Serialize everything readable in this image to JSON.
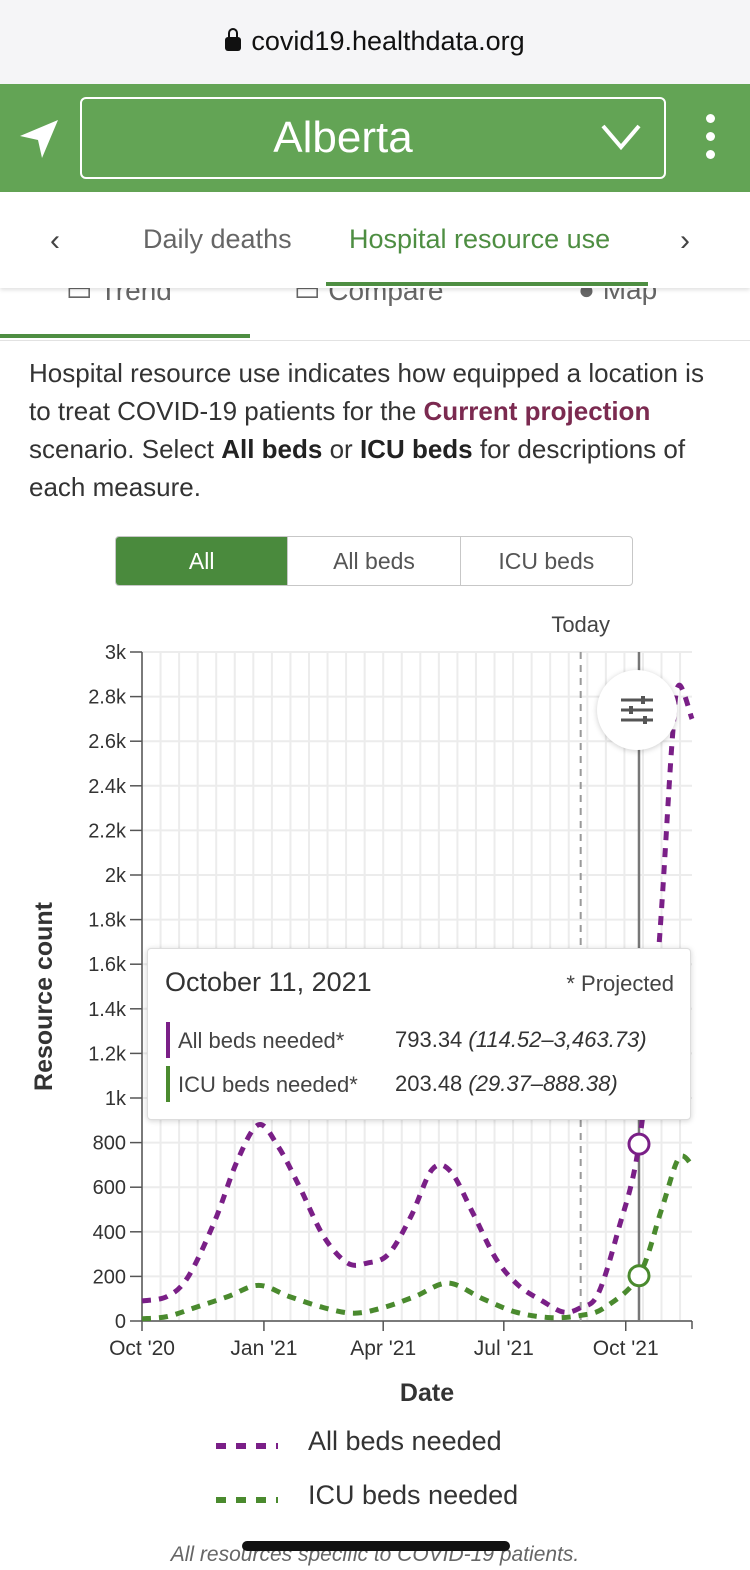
{
  "browser": {
    "url": "covid19.healthdata.org"
  },
  "header": {
    "location": "Alberta"
  },
  "tabs": {
    "items": [
      "Daily deaths",
      "Hospital resource use"
    ],
    "active": "Hospital resource use"
  },
  "subtabs": {
    "items": [
      "Trend",
      "Compare",
      "Map"
    ],
    "active": "Trend"
  },
  "description": {
    "part1": "Hospital resource use indicates how equipped a location is to treat COVID-19 patients for the ",
    "highlight": "Current projection",
    "part2": " scenario. Select ",
    "bold1": "All beds",
    "part3": " or ",
    "bold2": "ICU beds",
    "part4": " for descriptions of each measure."
  },
  "segmented": {
    "items": [
      "All",
      "All beds",
      "ICU beds"
    ],
    "active": "All"
  },
  "colors": {
    "brand_green": "#63a455",
    "all_beds": "#7a1f87",
    "icu_beds": "#4a8a2e",
    "highlight": "#7b2a50"
  },
  "tooltip": {
    "date": "October 11, 2021",
    "projected_note": "* Projected",
    "rows": [
      {
        "label": "All beds needed*",
        "value": "793.34",
        "range": "(114.52–3,463.73)"
      },
      {
        "label": "ICU beds needed*",
        "value": "203.48",
        "range": "(29.37–888.38)"
      }
    ]
  },
  "legend": [
    {
      "label": "All beds needed"
    },
    {
      "label": "ICU beds needed"
    }
  ],
  "footnote": "All resources specific to COVID-19 patients.",
  "chart_data": {
    "type": "line",
    "xlabel": "Date",
    "ylabel": "Resource count",
    "ylim": [
      0,
      3000
    ],
    "xlim": [
      "2020-10-01",
      "2021-11-20"
    ],
    "today_label": "Today",
    "today_date": "2021-08-28",
    "selected_date": "2021-10-11",
    "x_ticks": [
      {
        "date": "2020-10-01",
        "label": "Oct '20"
      },
      {
        "date": "2021-01-01",
        "label": "Jan '21"
      },
      {
        "date": "2021-04-01",
        "label": "Apr '21"
      },
      {
        "date": "2021-07-01",
        "label": "Jul '21"
      },
      {
        "date": "2021-10-01",
        "label": "Oct '21"
      }
    ],
    "y_ticks": [
      {
        "value": 0,
        "label": "0"
      },
      {
        "value": 200,
        "label": "200"
      },
      {
        "value": 400,
        "label": "400"
      },
      {
        "value": 600,
        "label": "600"
      },
      {
        "value": 800,
        "label": "800"
      },
      {
        "value": 1000,
        "label": "1k"
      },
      {
        "value": 1200,
        "label": "1.2k"
      },
      {
        "value": 1400,
        "label": "1.4k"
      },
      {
        "value": 1600,
        "label": "1.6k"
      },
      {
        "value": 1800,
        "label": "1.8k"
      },
      {
        "value": 2000,
        "label": "2k"
      },
      {
        "value": 2200,
        "label": "2.2k"
      },
      {
        "value": 2400,
        "label": "2.4k"
      },
      {
        "value": 2600,
        "label": "2.6k"
      },
      {
        "value": 2800,
        "label": "2.8k"
      },
      {
        "value": 3000,
        "label": "3k"
      }
    ],
    "series": [
      {
        "name": "All beds needed",
        "color": "#7a1f87",
        "points": [
          [
            "2020-10-01",
            90
          ],
          [
            "2020-10-20",
            110
          ],
          [
            "2020-11-05",
            200
          ],
          [
            "2020-11-25",
            450
          ],
          [
            "2020-12-12",
            720
          ],
          [
            "2020-12-28",
            880
          ],
          [
            "2021-01-12",
            780
          ],
          [
            "2021-01-28",
            600
          ],
          [
            "2021-02-15",
            380
          ],
          [
            "2021-03-05",
            260
          ],
          [
            "2021-03-20",
            260
          ],
          [
            "2021-04-05",
            300
          ],
          [
            "2021-04-22",
            470
          ],
          [
            "2021-05-08",
            680
          ],
          [
            "2021-05-22",
            670
          ],
          [
            "2021-06-08",
            480
          ],
          [
            "2021-06-25",
            280
          ],
          [
            "2021-07-12",
            160
          ],
          [
            "2021-07-30",
            90
          ],
          [
            "2021-08-15",
            40
          ],
          [
            "2021-08-28",
            60
          ],
          [
            "2021-09-10",
            120
          ],
          [
            "2021-09-25",
            400
          ],
          [
            "2021-10-11",
            793
          ],
          [
            "2021-10-25",
            1600
          ],
          [
            "2021-11-05",
            2600
          ],
          [
            "2021-11-10",
            2850
          ],
          [
            "2021-11-20",
            2700
          ]
        ]
      },
      {
        "name": "ICU beds needed",
        "color": "#4a8a2e",
        "points": [
          [
            "2020-10-01",
            10
          ],
          [
            "2020-10-20",
            20
          ],
          [
            "2020-11-10",
            60
          ],
          [
            "2020-12-05",
            110
          ],
          [
            "2020-12-28",
            160
          ],
          [
            "2021-01-20",
            110
          ],
          [
            "2021-02-15",
            60
          ],
          [
            "2021-03-10",
            35
          ],
          [
            "2021-04-01",
            60
          ],
          [
            "2021-04-25",
            110
          ],
          [
            "2021-05-20",
            170
          ],
          [
            "2021-06-15",
            100
          ],
          [
            "2021-07-10",
            40
          ],
          [
            "2021-08-05",
            15
          ],
          [
            "2021-08-28",
            25
          ],
          [
            "2021-09-15",
            60
          ],
          [
            "2021-10-11",
            203
          ],
          [
            "2021-10-28",
            500
          ],
          [
            "2021-11-10",
            730
          ],
          [
            "2021-11-20",
            700
          ]
        ]
      }
    ]
  }
}
